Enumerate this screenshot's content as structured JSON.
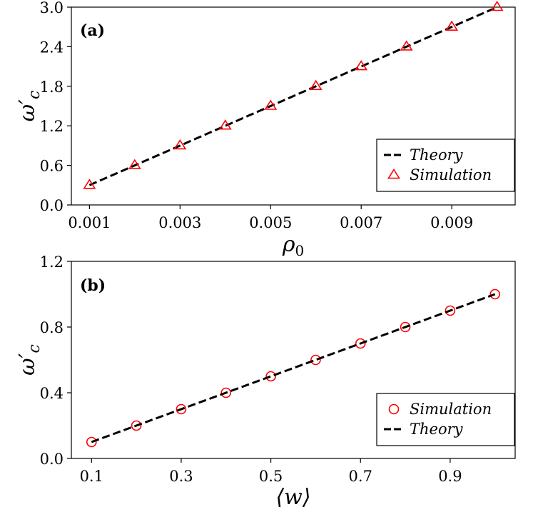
{
  "chart_data": [
    {
      "type": "line",
      "panel_label": "(a)",
      "xlabel": "ρ0",
      "ylabel": "ω′c",
      "xlim": [
        0.0006,
        0.0104
      ],
      "ylim": [
        0.0,
        3.0
      ],
      "xticks": [
        0.001,
        0.003,
        0.005,
        0.007,
        0.009
      ],
      "xtick_labels": [
        "0.001",
        "0.003",
        "0.005",
        "0.007",
        "0.009"
      ],
      "yticks": [
        0.0,
        0.6,
        1.2,
        1.8,
        2.4,
        3.0
      ],
      "ytick_labels": [
        "0.0",
        "0.6",
        "1.2",
        "1.8",
        "2.4",
        "3.0"
      ],
      "legend_position": "lower-right",
      "series": [
        {
          "name": "Theory",
          "style": "dashed-line",
          "color": "#000000",
          "x": [
            0.001,
            0.01
          ],
          "y": [
            0.3,
            3.0
          ]
        },
        {
          "name": "Simulation",
          "style": "triangle-marker",
          "color": "#ff0000",
          "x": [
            0.001,
            0.002,
            0.003,
            0.004,
            0.005,
            0.006,
            0.007,
            0.008,
            0.009,
            0.01
          ],
          "y": [
            0.3,
            0.6,
            0.9,
            1.2,
            1.5,
            1.8,
            2.1,
            2.4,
            2.7,
            3.0
          ]
        }
      ]
    },
    {
      "type": "line",
      "panel_label": "(b)",
      "xlabel": "⟨w⟩",
      "ylabel": "ω′c",
      "xlim": [
        0.055,
        1.045
      ],
      "ylim": [
        0.0,
        1.2
      ],
      "xticks": [
        0.1,
        0.3,
        0.5,
        0.7,
        0.9
      ],
      "xtick_labels": [
        "0.1",
        "0.3",
        "0.5",
        "0.7",
        "0.9"
      ],
      "yticks": [
        0.0,
        0.4,
        0.8,
        1.2
      ],
      "ytick_labels": [
        "0.0",
        "0.4",
        "0.8",
        "1.2"
      ],
      "legend_position": "lower-right",
      "series": [
        {
          "name": "Simulation",
          "style": "circle-marker",
          "color": "#ff0000",
          "x": [
            0.1,
            0.2,
            0.3,
            0.4,
            0.5,
            0.6,
            0.7,
            0.8,
            0.9,
            1.0
          ],
          "y": [
            0.1,
            0.2,
            0.3,
            0.4,
            0.5,
            0.6,
            0.7,
            0.8,
            0.9,
            1.0
          ]
        },
        {
          "name": "Theory",
          "style": "dashed-line",
          "color": "#000000",
          "x": [
            0.1,
            1.0
          ],
          "y": [
            0.1,
            1.0
          ]
        }
      ]
    }
  ]
}
